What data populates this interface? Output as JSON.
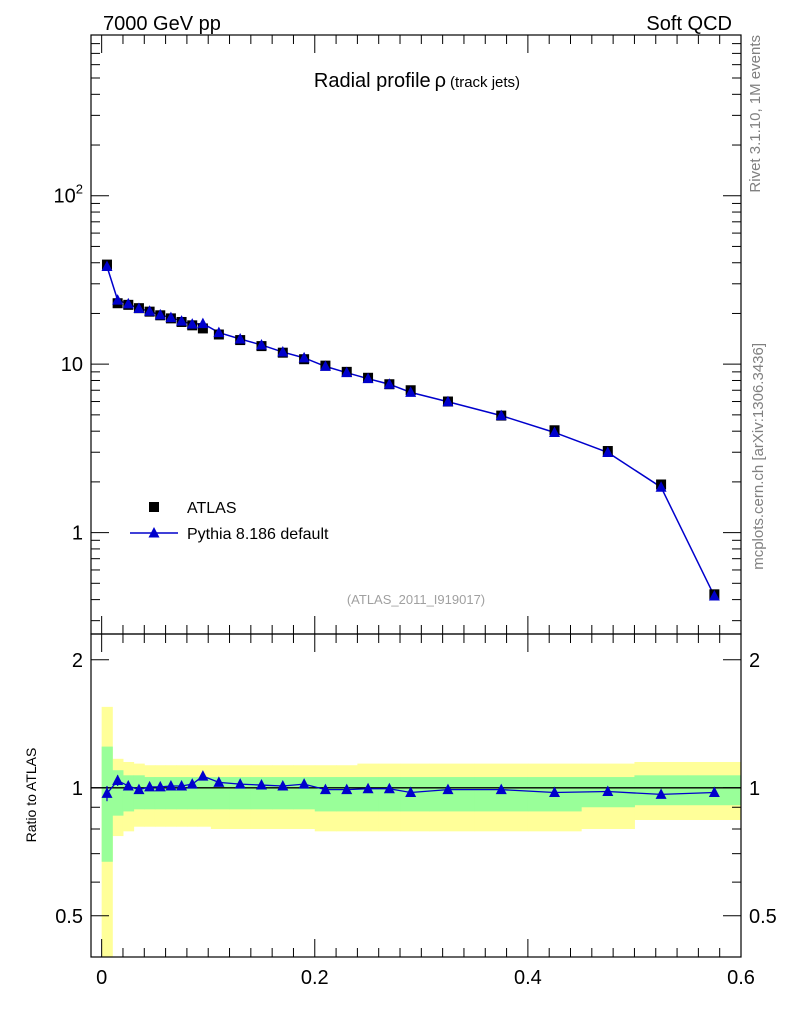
{
  "header": {
    "energy_label": "7000 GeV pp",
    "process_label": "Soft QCD"
  },
  "side_labels": {
    "rivet": "Rivet 3.1.10,  1M events",
    "mcplots": "mcplots.cern.ch [arXiv:1306.3436]"
  },
  "chart_data": {
    "type": "line",
    "title": "Radial profile",
    "title_symbol": "ρ",
    "title_suffix": "(track jets)",
    "analysis_label": "(ATLAS_2011_I919017)",
    "xlabel": "",
    "ylabel": "",
    "xlim": [
      -0.01,
      0.6
    ],
    "ylim": [
      0.25,
      900
    ],
    "yscale": "log",
    "legend_position": "lower-left",
    "x": [
      0.005,
      0.015,
      0.025,
      0.035,
      0.045,
      0.055,
      0.065,
      0.075,
      0.085,
      0.095,
      0.11,
      0.13,
      0.15,
      0.17,
      0.19,
      0.21,
      0.23,
      0.25,
      0.27,
      0.29,
      0.325,
      0.375,
      0.425,
      0.475,
      0.525,
      0.575
    ],
    "series": [
      {
        "name": "ATLAS",
        "color": "#000000",
        "marker": "square",
        "values": [
          39.0,
          23.0,
          22.5,
          21.5,
          20.5,
          19.5,
          18.7,
          17.8,
          17.0,
          16.3,
          15.0,
          13.9,
          12.8,
          11.7,
          10.7,
          9.8,
          9.0,
          8.3,
          7.6,
          7.0,
          6.0,
          4.95,
          4.05,
          3.05,
          1.93,
          0.43
        ]
      },
      {
        "name": "Pythia 8.186 default",
        "color": "#0000cc",
        "marker": "triangle",
        "values": [
          38.0,
          24.0,
          22.8,
          21.4,
          20.6,
          19.6,
          18.9,
          18.0,
          17.3,
          17.4,
          15.4,
          14.1,
          13.0,
          11.8,
          10.9,
          9.7,
          8.9,
          8.2,
          7.6,
          6.8,
          5.98,
          4.95,
          3.93,
          2.99,
          1.86,
          0.42
        ]
      }
    ],
    "ratio": {
      "ylabel": "Ratio to ATLAS",
      "ylim": [
        0.4,
        2.3
      ],
      "y_ticks": [
        0.5,
        1,
        2
      ],
      "x_ticks": [
        0,
        0.2,
        0.4,
        0.6
      ],
      "values": [
        0.97,
        1.04,
        1.01,
        0.99,
        1.005,
        1.005,
        1.01,
        1.01,
        1.02,
        1.065,
        1.03,
        1.02,
        1.015,
        1.01,
        1.02,
        0.99,
        0.99,
        0.995,
        0.995,
        0.975,
        0.99,
        0.99,
        0.975,
        0.98,
        0.965,
        0.975
      ],
      "errors": [
        0.04,
        0.03,
        0.02,
        0.015,
        0.015,
        0.01,
        0.01,
        0.01,
        0.01,
        0.01,
        0.01,
        0.01,
        0.01,
        0.01,
        0.01,
        0.01,
        0.01,
        0.01,
        0.01,
        0.01,
        0.01,
        0.01,
        0.01,
        0.01,
        0.01,
        0.01
      ],
      "band_inner": [
        [
          0.67,
          1.25
        ],
        [
          0.86,
          1.1
        ],
        [
          0.88,
          1.07
        ],
        [
          0.89,
          1.07
        ],
        [
          0.89,
          1.06
        ],
        [
          0.89,
          1.06
        ],
        [
          0.89,
          1.06
        ],
        [
          0.89,
          1.06
        ],
        [
          0.89,
          1.06
        ],
        [
          0.89,
          1.06
        ],
        [
          0.89,
          1.06
        ],
        [
          0.89,
          1.06
        ],
        [
          0.89,
          1.06
        ],
        [
          0.89,
          1.06
        ],
        [
          0.89,
          1.06
        ],
        [
          0.88,
          1.06
        ],
        [
          0.88,
          1.06
        ],
        [
          0.88,
          1.06
        ],
        [
          0.88,
          1.06
        ],
        [
          0.88,
          1.06
        ],
        [
          0.88,
          1.06
        ],
        [
          0.88,
          1.06
        ],
        [
          0.88,
          1.06
        ],
        [
          0.9,
          1.06
        ],
        [
          0.91,
          1.07
        ],
        [
          0.91,
          1.07
        ]
      ],
      "band_outer": [
        [
          0.35,
          1.55
        ],
        [
          0.77,
          1.17
        ],
        [
          0.79,
          1.15
        ],
        [
          0.81,
          1.14
        ],
        [
          0.81,
          1.13
        ],
        [
          0.81,
          1.13
        ],
        [
          0.81,
          1.13
        ],
        [
          0.81,
          1.13
        ],
        [
          0.81,
          1.13
        ],
        [
          0.81,
          1.13
        ],
        [
          0.8,
          1.13
        ],
        [
          0.8,
          1.13
        ],
        [
          0.8,
          1.13
        ],
        [
          0.8,
          1.13
        ],
        [
          0.8,
          1.13
        ],
        [
          0.79,
          1.13
        ],
        [
          0.79,
          1.13
        ],
        [
          0.79,
          1.14
        ],
        [
          0.79,
          1.14
        ],
        [
          0.79,
          1.14
        ],
        [
          0.79,
          1.14
        ],
        [
          0.79,
          1.14
        ],
        [
          0.79,
          1.14
        ],
        [
          0.8,
          1.14
        ],
        [
          0.84,
          1.15
        ],
        [
          0.84,
          1.15
        ]
      ]
    }
  },
  "colors": {
    "band_inner": "#99ff99",
    "band_outer": "#ffff99",
    "grey_text": "#808080"
  }
}
